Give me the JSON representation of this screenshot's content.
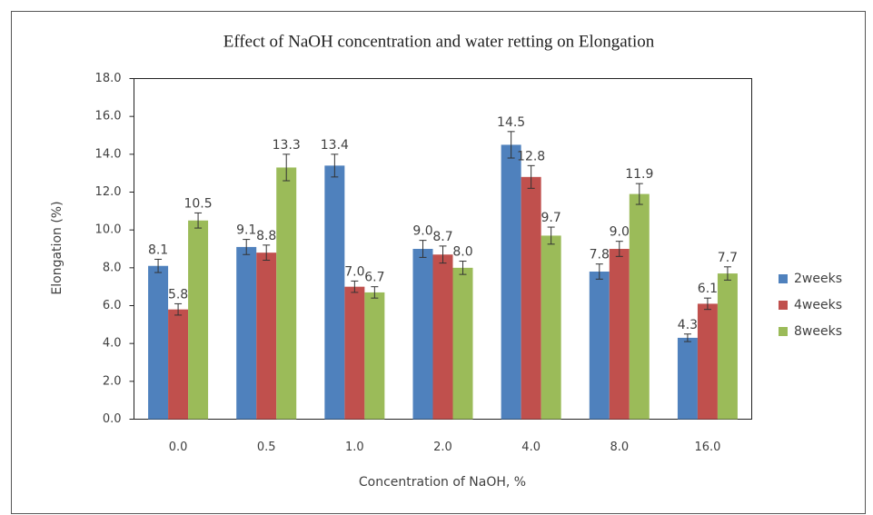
{
  "chart_data": {
    "type": "bar",
    "title": "Effect of NaOH concentration and water retting on Elongation",
    "x_label": "Concentration of NaOH, %",
    "y_label": "Elongation (%)",
    "categories": [
      "0.0",
      "0.5",
      "1.0",
      "2.0",
      "4.0",
      "8.0",
      "16.0"
    ],
    "series": [
      {
        "name": "2weeks",
        "color": "#4f81bd",
        "values": [
          8.1,
          9.1,
          13.4,
          9.0,
          14.5,
          7.8,
          4.3
        ],
        "value_labels": [
          "8.1",
          "9.1",
          "13.4",
          "9.0",
          "14.5",
          "7.8",
          "4.3"
        ],
        "errors": [
          0.35,
          0.4,
          0.6,
          0.45,
          0.7,
          0.4,
          0.2
        ]
      },
      {
        "name": "4weeks",
        "color": "#c0504d",
        "values": [
          5.8,
          8.8,
          7.0,
          8.7,
          12.8,
          9.0,
          6.1
        ],
        "value_labels": [
          "5.8",
          "8.8",
          "7.0",
          "8.7",
          "12.8",
          "9.0",
          "6.1"
        ],
        "errors": [
          0.3,
          0.4,
          0.3,
          0.45,
          0.6,
          0.4,
          0.3
        ]
      },
      {
        "name": "8weeks",
        "color": "#9bbb59",
        "values": [
          10.5,
          13.3,
          6.7,
          8.0,
          9.7,
          11.9,
          7.7
        ],
        "value_labels": [
          "10.5",
          "13.3",
          "6.7",
          "8.0",
          "9.7",
          "11.9",
          "7.7"
        ],
        "errors": [
          0.4,
          0.7,
          0.3,
          0.35,
          0.45,
          0.55,
          0.35
        ]
      }
    ],
    "ylim": [
      0,
      18
    ],
    "yticks": [
      {
        "value": 0,
        "label": "0.0"
      },
      {
        "value": 2,
        "label": "2.0"
      },
      {
        "value": 4,
        "label": "4.0"
      },
      {
        "value": 6,
        "label": "6.0"
      },
      {
        "value": 8,
        "label": "8.0"
      },
      {
        "value": 10,
        "label": "10.0"
      },
      {
        "value": 12,
        "label": "12.0"
      },
      {
        "value": 14,
        "label": "14.0"
      },
      {
        "value": 16,
        "label": "16.0"
      },
      {
        "value": 18,
        "label": "18.0"
      }
    ],
    "legend": "right",
    "grid": false
  }
}
